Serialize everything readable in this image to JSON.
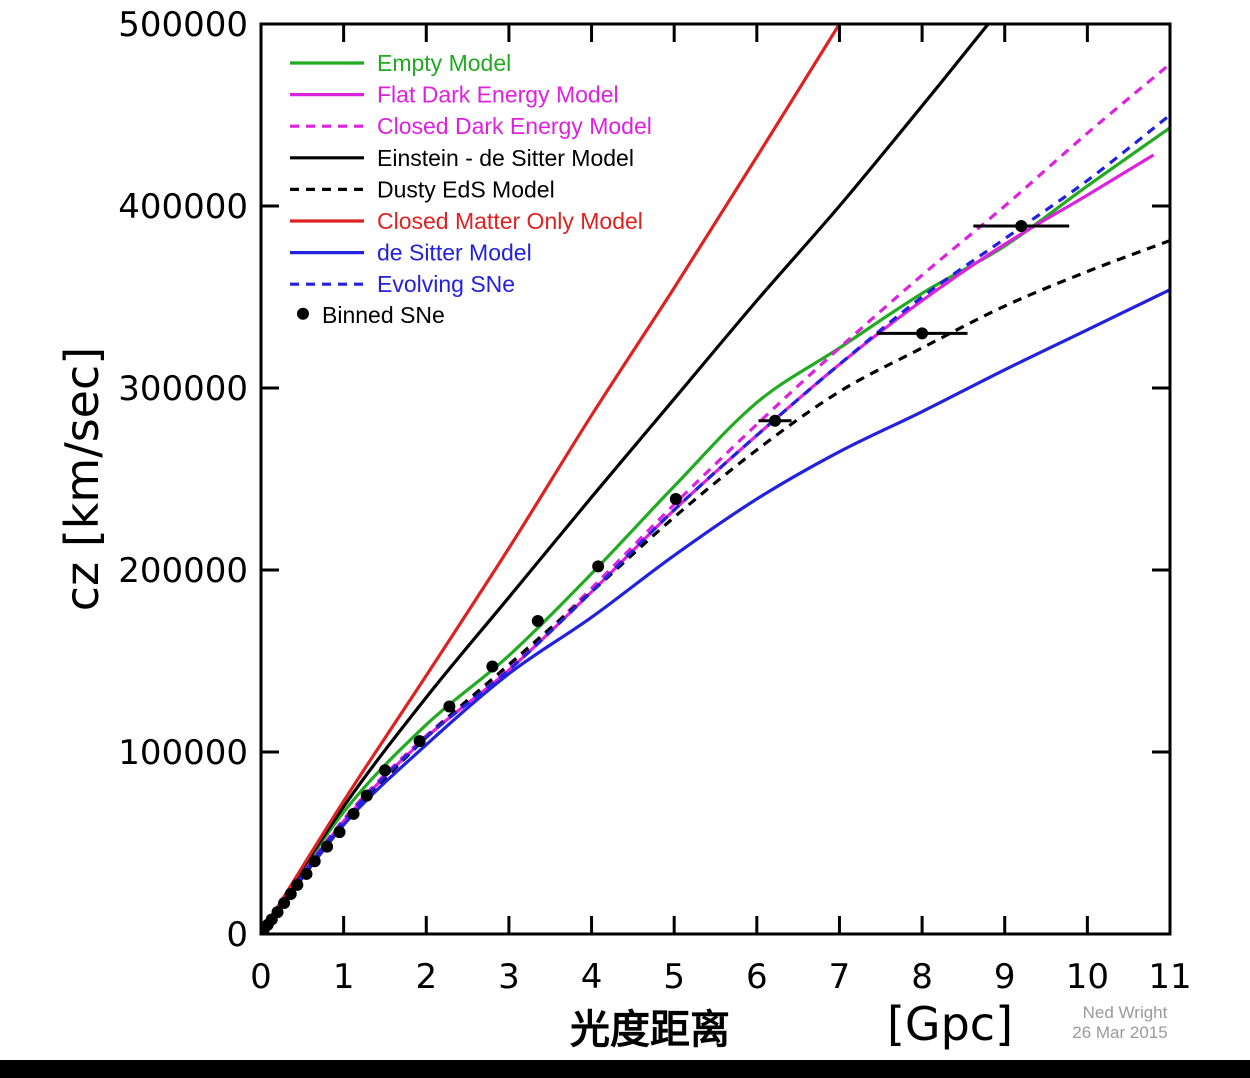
{
  "chart_data": {
    "type": "line",
    "xlabel": "光度距离",
    "xunit": "[Gpc]",
    "ylabel": "cz [km/sec]",
    "xlim": [
      0,
      11
    ],
    "ylim": [
      0,
      500000
    ],
    "xticks": [
      0,
      1,
      2,
      3,
      4,
      5,
      6,
      7,
      8,
      9,
      10,
      11
    ],
    "yticks": [
      0,
      100000,
      200000,
      300000,
      400000,
      500000
    ],
    "grid": false,
    "legend_position": "top-left",
    "credit": [
      "Ned Wright",
      "26 Mar 2015"
    ],
    "series": [
      {
        "name": "Empty Model",
        "color": "#22aa22",
        "dash": false,
        "x": [
          0,
          1,
          2,
          3,
          4,
          5,
          6,
          7,
          8,
          9,
          10,
          11
        ],
        "y": [
          0,
          67000,
          115000,
          153000,
          198000,
          246000,
          292000,
          322000,
          352000,
          378000,
          411000,
          443000
        ]
      },
      {
        "name": "Flat Dark Energy Model",
        "color": "#dd22dd",
        "dash": false,
        "x": [
          0,
          1,
          2,
          3,
          4,
          5,
          6,
          7,
          8,
          9,
          10,
          10.8
        ],
        "y": [
          0,
          62000,
          108000,
          145000,
          188000,
          233000,
          274000,
          313000,
          348000,
          379000,
          406000,
          428000
        ]
      },
      {
        "name": "Closed Dark Energy Model",
        "color": "#dd22dd",
        "dash": true,
        "x": [
          0,
          1,
          2,
          3,
          4,
          5,
          6,
          7,
          8,
          9,
          10,
          11
        ],
        "y": [
          0,
          63000,
          109000,
          146000,
          190000,
          236000,
          280000,
          322000,
          362000,
          400000,
          440000,
          478000
        ]
      },
      {
        "name": "Einstein - de Sitter Model",
        "color": "#000000",
        "dash": false,
        "x": [
          0,
          1,
          2,
          3,
          4,
          5,
          6,
          7,
          8,
          8.8
        ],
        "y": [
          0,
          70000,
          130000,
          185000,
          240000,
          294000,
          348000,
          400000,
          455000,
          500000
        ]
      },
      {
        "name": "Dusty EdS Model",
        "color": "#000000",
        "dash": true,
        "x": [
          0,
          1,
          2,
          3,
          4,
          5,
          6,
          7,
          8,
          9,
          10,
          11
        ],
        "y": [
          0,
          60000,
          108000,
          148000,
          188000,
          229000,
          266000,
          298000,
          322000,
          345000,
          364000,
          381000
        ]
      },
      {
        "name": "Closed Matter Only Model",
        "color": "#dd2222",
        "dash": false,
        "x": [
          0,
          1,
          2,
          3,
          4,
          5,
          6,
          7
        ],
        "y": [
          0,
          73000,
          142000,
          212000,
          285000,
          355000,
          427000,
          500000
        ]
      },
      {
        "name": "de Sitter Model",
        "color": "#2222dd",
        "dash": false,
        "x": [
          0,
          1,
          2,
          3,
          4,
          5,
          6,
          7,
          8,
          9,
          10,
          11
        ],
        "y": [
          0,
          60000,
          104000,
          143000,
          174000,
          208000,
          239000,
          265000,
          287000,
          310000,
          332000,
          354000
        ]
      },
      {
        "name": "Evolving SNe",
        "color": "#2222dd",
        "dash": true,
        "x": [
          0,
          1,
          2,
          3,
          4,
          5,
          6,
          7,
          8,
          9,
          10,
          11
        ],
        "y": [
          0,
          62000,
          108000,
          145000,
          188000,
          233000,
          274000,
          313000,
          350000,
          382000,
          414000,
          450000
        ]
      }
    ],
    "binned_sne": {
      "name": "Binned SNe",
      "points": [
        {
          "x": 0.03,
          "y": 2000
        },
        {
          "x": 0.08,
          "y": 5000
        },
        {
          "x": 0.13,
          "y": 8000
        },
        {
          "x": 0.2,
          "y": 12000
        },
        {
          "x": 0.28,
          "y": 17000
        },
        {
          "x": 0.36,
          "y": 22000
        },
        {
          "x": 0.44,
          "y": 27000
        },
        {
          "x": 0.55,
          "y": 33000
        },
        {
          "x": 0.65,
          "y": 40000
        },
        {
          "x": 0.8,
          "y": 48000
        },
        {
          "x": 0.95,
          "y": 56000
        },
        {
          "x": 1.12,
          "y": 66000
        },
        {
          "x": 1.28,
          "y": 76000
        },
        {
          "x": 1.5,
          "y": 90000
        },
        {
          "x": 1.92,
          "y": 106000
        },
        {
          "x": 2.28,
          "y": 125000
        },
        {
          "x": 2.8,
          "y": 147000
        },
        {
          "x": 3.35,
          "y": 172000
        },
        {
          "x": 4.08,
          "y": 202000
        },
        {
          "x": 5.02,
          "y": 239000
        },
        {
          "x": 6.22,
          "y": 282000,
          "xerr": 0.2
        },
        {
          "x": 8.0,
          "y": 330000,
          "xerr": 0.55
        },
        {
          "x": 9.2,
          "y": 389000,
          "xerr": 0.58
        }
      ]
    }
  }
}
